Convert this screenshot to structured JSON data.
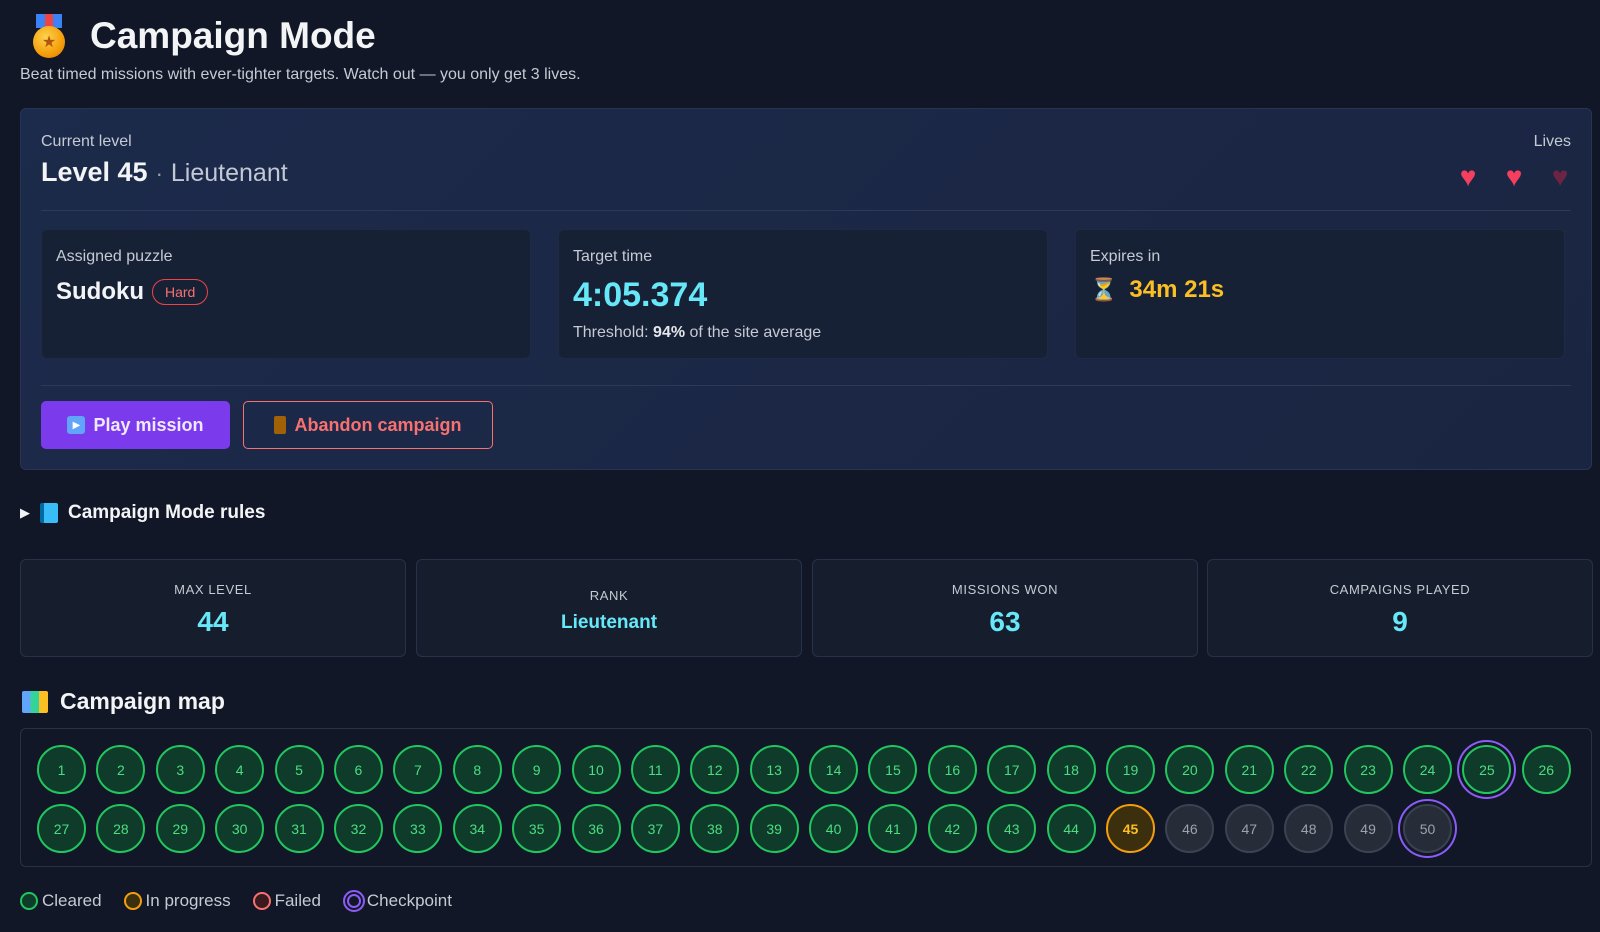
{
  "header": {
    "title": "Campaign Mode",
    "icon": "medal-icon",
    "subtitle": "Beat timed missions with ever-tighter targets. Watch out — you only get 3 lives."
  },
  "current": {
    "label": "Current level",
    "level": "Level 45",
    "separator": "·",
    "rank": "Lieutenant",
    "lives_label": "Lives",
    "lives_total": 3,
    "lives_remaining": 2
  },
  "cards": {
    "puzzle": {
      "label": "Assigned puzzle",
      "name": "Sudoku",
      "difficulty": "Hard"
    },
    "target": {
      "label": "Target time",
      "value": "4:05.374",
      "threshold_prefix": "Threshold: ",
      "threshold_pct": "94%",
      "threshold_suffix": " of the site average"
    },
    "expires": {
      "label": "Expires in",
      "value": "34m 21s"
    }
  },
  "actions": {
    "play_label": "Play mission",
    "abandon_label": "Abandon campaign"
  },
  "rules": {
    "label": "Campaign Mode rules"
  },
  "stats": [
    {
      "label": "MAX LEVEL",
      "value": "44"
    },
    {
      "label": "RANK",
      "value": "Lieutenant"
    },
    {
      "label": "MISSIONS WON",
      "value": "63"
    },
    {
      "label": "CAMPAIGNS PLAYED",
      "value": "9"
    }
  ],
  "map": {
    "title": "Campaign map",
    "total_levels": 50,
    "cleared_through": 44,
    "in_progress": 45,
    "checkpoints": [
      25,
      50
    ]
  },
  "legend": {
    "cleared": "Cleared",
    "in_progress": "In progress",
    "failed": "Failed",
    "checkpoint": "Checkpoint"
  },
  "colors": {
    "accent": "#7c3aed",
    "cyan": "#67e8f9",
    "cleared": "#22c55e",
    "in_progress": "#f59e0b",
    "failed": "#f87171",
    "checkpoint": "#8b5cf6"
  }
}
